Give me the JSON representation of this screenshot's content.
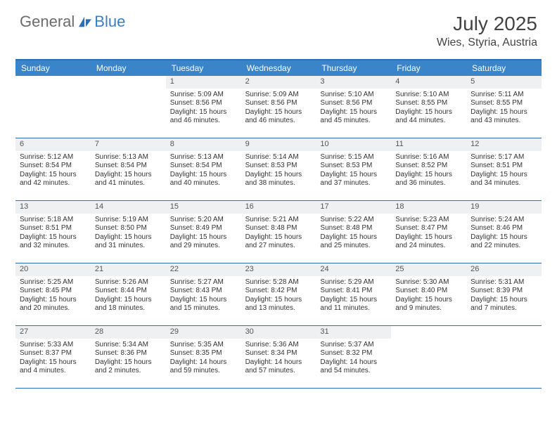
{
  "logo": {
    "text1": "General",
    "text2": "Blue"
  },
  "title": "July 2025",
  "location": "Wies, Styria, Austria",
  "colors": {
    "header_bg": "#3a84c9",
    "header_border": "#2d6fb5",
    "daynum_bg": "#eef0f2",
    "logo_gray": "#6b6b6b",
    "logo_blue": "#3a7fc4"
  },
  "day_headers": [
    "Sunday",
    "Monday",
    "Tuesday",
    "Wednesday",
    "Thursday",
    "Friday",
    "Saturday"
  ],
  "weeks": [
    [
      {
        "n": "",
        "sr": "",
        "ss": "",
        "dl": ""
      },
      {
        "n": "",
        "sr": "",
        "ss": "",
        "dl": ""
      },
      {
        "n": "1",
        "sr": "Sunrise: 5:09 AM",
        "ss": "Sunset: 8:56 PM",
        "dl": "Daylight: 15 hours and 46 minutes."
      },
      {
        "n": "2",
        "sr": "Sunrise: 5:09 AM",
        "ss": "Sunset: 8:56 PM",
        "dl": "Daylight: 15 hours and 46 minutes."
      },
      {
        "n": "3",
        "sr": "Sunrise: 5:10 AM",
        "ss": "Sunset: 8:56 PM",
        "dl": "Daylight: 15 hours and 45 minutes."
      },
      {
        "n": "4",
        "sr": "Sunrise: 5:10 AM",
        "ss": "Sunset: 8:55 PM",
        "dl": "Daylight: 15 hours and 44 minutes."
      },
      {
        "n": "5",
        "sr": "Sunrise: 5:11 AM",
        "ss": "Sunset: 8:55 PM",
        "dl": "Daylight: 15 hours and 43 minutes."
      }
    ],
    [
      {
        "n": "6",
        "sr": "Sunrise: 5:12 AM",
        "ss": "Sunset: 8:54 PM",
        "dl": "Daylight: 15 hours and 42 minutes."
      },
      {
        "n": "7",
        "sr": "Sunrise: 5:13 AM",
        "ss": "Sunset: 8:54 PM",
        "dl": "Daylight: 15 hours and 41 minutes."
      },
      {
        "n": "8",
        "sr": "Sunrise: 5:13 AM",
        "ss": "Sunset: 8:54 PM",
        "dl": "Daylight: 15 hours and 40 minutes."
      },
      {
        "n": "9",
        "sr": "Sunrise: 5:14 AM",
        "ss": "Sunset: 8:53 PM",
        "dl": "Daylight: 15 hours and 38 minutes."
      },
      {
        "n": "10",
        "sr": "Sunrise: 5:15 AM",
        "ss": "Sunset: 8:53 PM",
        "dl": "Daylight: 15 hours and 37 minutes."
      },
      {
        "n": "11",
        "sr": "Sunrise: 5:16 AM",
        "ss": "Sunset: 8:52 PM",
        "dl": "Daylight: 15 hours and 36 minutes."
      },
      {
        "n": "12",
        "sr": "Sunrise: 5:17 AM",
        "ss": "Sunset: 8:51 PM",
        "dl": "Daylight: 15 hours and 34 minutes."
      }
    ],
    [
      {
        "n": "13",
        "sr": "Sunrise: 5:18 AM",
        "ss": "Sunset: 8:51 PM",
        "dl": "Daylight: 15 hours and 32 minutes."
      },
      {
        "n": "14",
        "sr": "Sunrise: 5:19 AM",
        "ss": "Sunset: 8:50 PM",
        "dl": "Daylight: 15 hours and 31 minutes."
      },
      {
        "n": "15",
        "sr": "Sunrise: 5:20 AM",
        "ss": "Sunset: 8:49 PM",
        "dl": "Daylight: 15 hours and 29 minutes."
      },
      {
        "n": "16",
        "sr": "Sunrise: 5:21 AM",
        "ss": "Sunset: 8:48 PM",
        "dl": "Daylight: 15 hours and 27 minutes."
      },
      {
        "n": "17",
        "sr": "Sunrise: 5:22 AM",
        "ss": "Sunset: 8:48 PM",
        "dl": "Daylight: 15 hours and 25 minutes."
      },
      {
        "n": "18",
        "sr": "Sunrise: 5:23 AM",
        "ss": "Sunset: 8:47 PM",
        "dl": "Daylight: 15 hours and 24 minutes."
      },
      {
        "n": "19",
        "sr": "Sunrise: 5:24 AM",
        "ss": "Sunset: 8:46 PM",
        "dl": "Daylight: 15 hours and 22 minutes."
      }
    ],
    [
      {
        "n": "20",
        "sr": "Sunrise: 5:25 AM",
        "ss": "Sunset: 8:45 PM",
        "dl": "Daylight: 15 hours and 20 minutes."
      },
      {
        "n": "21",
        "sr": "Sunrise: 5:26 AM",
        "ss": "Sunset: 8:44 PM",
        "dl": "Daylight: 15 hours and 18 minutes."
      },
      {
        "n": "22",
        "sr": "Sunrise: 5:27 AM",
        "ss": "Sunset: 8:43 PM",
        "dl": "Daylight: 15 hours and 15 minutes."
      },
      {
        "n": "23",
        "sr": "Sunrise: 5:28 AM",
        "ss": "Sunset: 8:42 PM",
        "dl": "Daylight: 15 hours and 13 minutes."
      },
      {
        "n": "24",
        "sr": "Sunrise: 5:29 AM",
        "ss": "Sunset: 8:41 PM",
        "dl": "Daylight: 15 hours and 11 minutes."
      },
      {
        "n": "25",
        "sr": "Sunrise: 5:30 AM",
        "ss": "Sunset: 8:40 PM",
        "dl": "Daylight: 15 hours and 9 minutes."
      },
      {
        "n": "26",
        "sr": "Sunrise: 5:31 AM",
        "ss": "Sunset: 8:39 PM",
        "dl": "Daylight: 15 hours and 7 minutes."
      }
    ],
    [
      {
        "n": "27",
        "sr": "Sunrise: 5:33 AM",
        "ss": "Sunset: 8:37 PM",
        "dl": "Daylight: 15 hours and 4 minutes."
      },
      {
        "n": "28",
        "sr": "Sunrise: 5:34 AM",
        "ss": "Sunset: 8:36 PM",
        "dl": "Daylight: 15 hours and 2 minutes."
      },
      {
        "n": "29",
        "sr": "Sunrise: 5:35 AM",
        "ss": "Sunset: 8:35 PM",
        "dl": "Daylight: 14 hours and 59 minutes."
      },
      {
        "n": "30",
        "sr": "Sunrise: 5:36 AM",
        "ss": "Sunset: 8:34 PM",
        "dl": "Daylight: 14 hours and 57 minutes."
      },
      {
        "n": "31",
        "sr": "Sunrise: 5:37 AM",
        "ss": "Sunset: 8:32 PM",
        "dl": "Daylight: 14 hours and 54 minutes."
      },
      {
        "n": "",
        "sr": "",
        "ss": "",
        "dl": ""
      },
      {
        "n": "",
        "sr": "",
        "ss": "",
        "dl": ""
      }
    ]
  ]
}
